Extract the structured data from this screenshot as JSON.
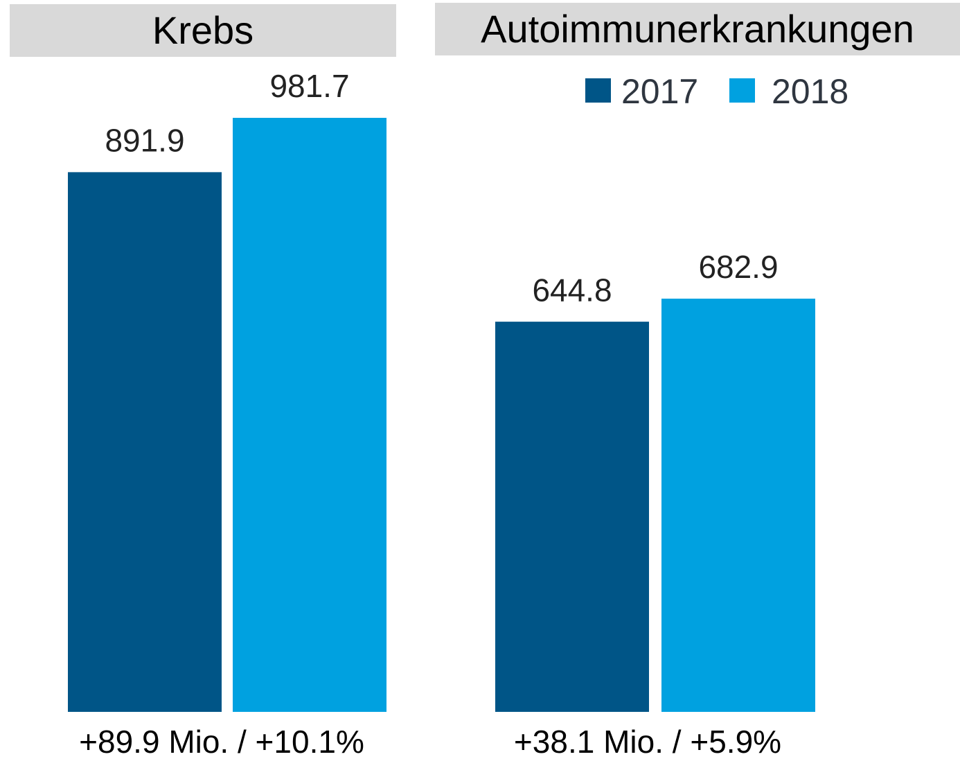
{
  "chart_data": {
    "type": "bar",
    "categories": [
      "Krebs",
      "Autoimmunerkrankungen"
    ],
    "series": [
      {
        "name": "2017",
        "color": "#005587",
        "values": [
          891.9,
          644.8
        ]
      },
      {
        "name": "2018",
        "color": "#00a1e0",
        "values": [
          981.7,
          682.9
        ]
      }
    ],
    "annotations": [
      "+89.9 Mio. / +10.1%",
      "+38.1 Mio. / +5.9%"
    ],
    "legend": "top-right"
  }
}
